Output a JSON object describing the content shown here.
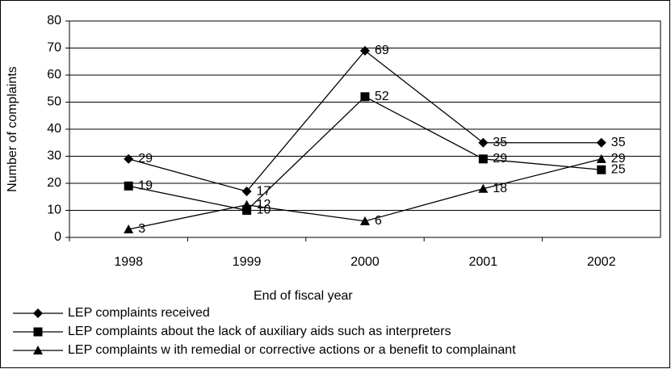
{
  "chart_data": {
    "type": "line",
    "x_label": "End of fiscal year",
    "y_label": "Number of complaints",
    "categories": [
      "1998",
      "1999",
      "2000",
      "2001",
      "2002"
    ],
    "series": [
      {
        "name": "LEP complaints received",
        "color": "#000000",
        "marker": "diamond",
        "values": [
          29,
          17,
          69,
          35,
          35
        ]
      },
      {
        "name": "LEP complaints about the lack of auxiliary aids such as interpreters",
        "color": "#000000",
        "marker": "square",
        "values": [
          19,
          10,
          52,
          29,
          25
        ]
      },
      {
        "name": "LEP complaints w ith remedial or corrective actions or a benefit to complainant",
        "color": "#000000",
        "marker": "triangle",
        "values": [
          3,
          12,
          6,
          18,
          29
        ]
      }
    ],
    "ylim": [
      0,
      80
    ],
    "yticks": [
      0,
      10,
      20,
      30,
      40,
      50,
      60,
      70,
      80
    ],
    "grid": true,
    "legend": "bottom"
  }
}
